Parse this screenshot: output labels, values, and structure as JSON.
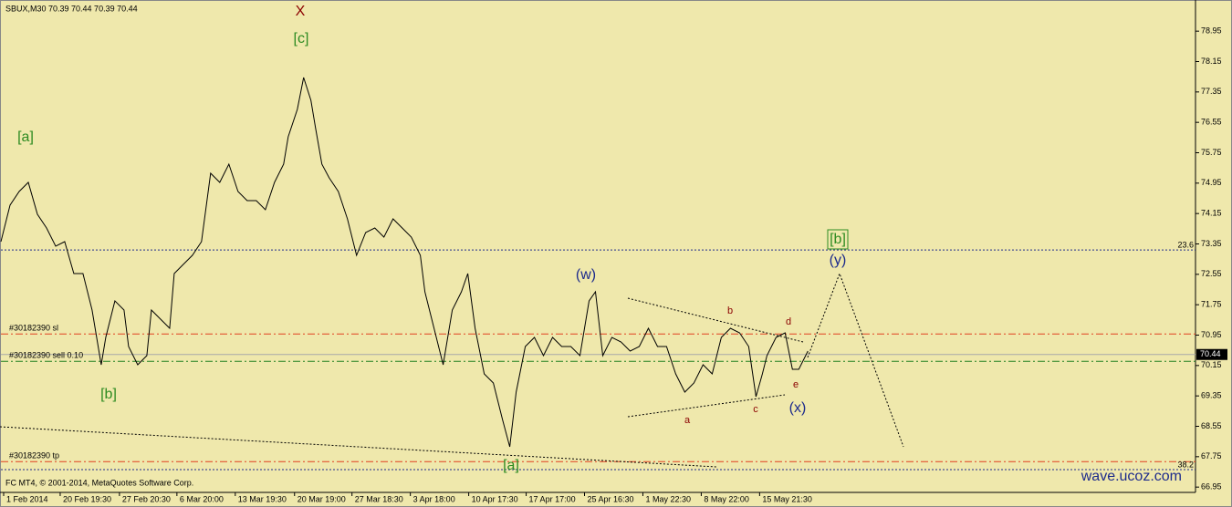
{
  "chart_data": {
    "type": "line",
    "title": "SBUX,M30  70.39 70.44 70.39 70.44",
    "color": "#000000",
    "x": [
      0,
      10,
      20,
      30,
      40,
      50,
      60,
      70,
      80,
      90,
      100,
      110,
      115,
      125,
      135,
      140,
      150,
      160,
      165,
      175,
      185,
      190,
      200,
      210,
      220,
      230,
      240,
      250,
      260,
      270,
      280,
      290,
      300,
      310,
      315,
      325,
      332,
      340,
      345,
      352,
      360,
      370,
      380,
      390,
      400,
      410,
      420,
      430,
      440,
      450,
      460,
      465,
      475,
      485,
      495,
      505,
      512,
      520,
      530,
      540,
      550,
      558,
      565,
      575,
      585,
      595,
      605,
      615,
      625,
      635,
      645,
      652,
      660,
      670,
      680,
      690,
      700,
      710,
      720,
      730,
      740,
      750,
      760,
      770,
      780,
      790,
      800,
      810,
      820,
      828,
      835,
      840,
      850,
      860,
      868,
      875,
      885
    ],
    "values": [
      73.41,
      74.37,
      74.73,
      74.97,
      74.13,
      73.77,
      73.29,
      73.41,
      72.57,
      72.57,
      71.61,
      70.17,
      70.89,
      71.85,
      71.61,
      70.65,
      70.17,
      70.41,
      71.61,
      71.37,
      71.13,
      72.57,
      72.81,
      73.05,
      73.41,
      75.21,
      74.97,
      75.45,
      74.73,
      74.49,
      74.49,
      74.25,
      74.97,
      75.45,
      76.17,
      76.89,
      77.73,
      77.13,
      76.41,
      75.45,
      75.09,
      74.73,
      74.01,
      73.05,
      73.65,
      73.77,
      73.53,
      74.01,
      73.77,
      73.53,
      73.05,
      72.09,
      71.13,
      70.17,
      71.61,
      72.09,
      72.57,
      71.13,
      69.93,
      69.69,
      68.73,
      68.01,
      69.45,
      70.65,
      70.89,
      70.41,
      70.89,
      70.65,
      70.65,
      70.41,
      71.85,
      72.09,
      70.41,
      70.89,
      70.77,
      70.53,
      70.65,
      71.13,
      70.65,
      70.65,
      69.93,
      69.45,
      69.69,
      70.17,
      69.93,
      70.89,
      71.13,
      71.01,
      70.65,
      69.33,
      69.93,
      70.41,
      70.89,
      71.01,
      70.05,
      70.05,
      70.53
    ],
    "xlim": [
      0,
      1310
    ],
    "ylim": [
      66.81,
      79.77
    ],
    "xticks": [
      {
        "value": 3,
        "label": "1 Feb 2014"
      },
      {
        "value": 65,
        "label": "20 Feb 19:30"
      },
      {
        "value": 130,
        "label": "27 Feb 20:30"
      },
      {
        "value": 193,
        "label": "6 Mar 20:00"
      },
      {
        "value": 257,
        "label": "13 Mar 19:30"
      },
      {
        "value": 322,
        "label": "20 Mar 19:00"
      },
      {
        "value": 385,
        "label": "27 Mar 18:30"
      },
      {
        "value": 449,
        "label": "3 Apr 18:00"
      },
      {
        "value": 513,
        "label": "10 Apr 17:30"
      },
      {
        "value": 576,
        "label": "17 Apr 17:00"
      },
      {
        "value": 640,
        "label": "25 Apr 16:30"
      },
      {
        "value": 704,
        "label": "1 May 22:30"
      },
      {
        "value": 768,
        "label": "8 May 22:00"
      },
      {
        "value": 832,
        "label": "15 May 21:30"
      }
    ],
    "yticks": [
      78.95,
      78.15,
      77.35,
      76.55,
      75.75,
      74.95,
      74.15,
      73.35,
      72.55,
      71.75,
      70.95,
      70.15,
      69.35,
      68.55,
      67.75,
      66.95
    ],
    "last_price": 70.44,
    "levels": [
      {
        "label": "23.6",
        "value": 73.19,
        "color": "#1c2a8c",
        "style": "dotted",
        "label_side": "right"
      },
      {
        "label": "#30182390 sl",
        "value": 70.98,
        "color": "#e04020",
        "style": "dashdot",
        "label_side": "left"
      },
      {
        "label": "#30182390 sell 0.10",
        "value": 70.26,
        "color": "#208020",
        "style": "dashdot",
        "label_side": "left"
      },
      {
        "label": "#30182390 tp",
        "value": 67.62,
        "color": "#e04020",
        "style": "dashdot",
        "label_side": "left"
      },
      {
        "label": "38.2",
        "value": 67.41,
        "color": "#1c2a8c",
        "style": "dotted",
        "label_side": "right"
      }
    ],
    "annotations": [
      "X",
      "[c]",
      "[a]",
      "[b]",
      "[a]",
      "(w)",
      "b",
      "d",
      "a",
      "c",
      "e",
      "(x)",
      "[b]",
      "(y)"
    ],
    "copyright": "FC MT4, © 2001-2014, MetaQuotes Software Corp.",
    "watermark": "wave.ucoz.com"
  }
}
